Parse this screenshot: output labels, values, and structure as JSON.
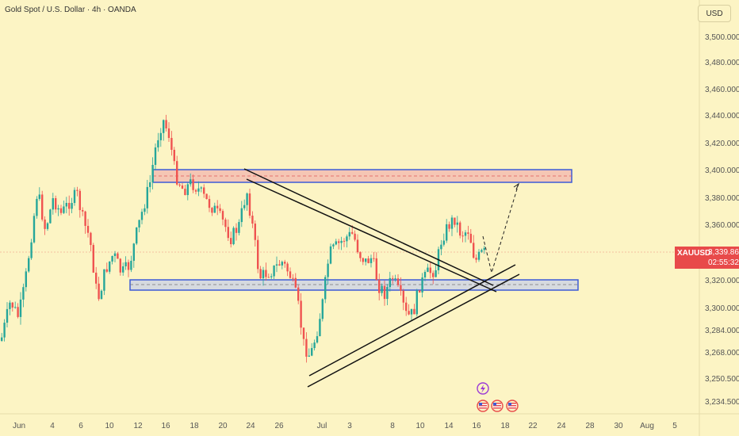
{
  "header": {
    "title": "Gold Spot / U.S. Dollar · 4h · OANDA"
  },
  "price_axis": {
    "currency": "USD",
    "ticks": [
      "3,500.000",
      "3,480.000",
      "3,460.000",
      "3,440.000",
      "3,420.000",
      "3,400.000",
      "3,380.000",
      "3,360.000",
      "3,320.000",
      "3,300.000",
      "3,284.000",
      "3,268.000",
      "3,250.500",
      "3,234.500"
    ]
  },
  "time_axis": {
    "ticks": [
      "Jun",
      "4",
      "6",
      "10",
      "12",
      "16",
      "18",
      "20",
      "24",
      "26",
      "Jul",
      "3",
      "8",
      "10",
      "14",
      "16",
      "18",
      "22",
      "24",
      "28",
      "30",
      "Aug",
      "5"
    ]
  },
  "last_price": {
    "symbol": "XAUUSD",
    "value": "3,339.865",
    "countdown": "02:55:32"
  },
  "events": {
    "flash_icon": "lightning-icon",
    "flag_icons": [
      "us-flag-icon",
      "us-flag-icon",
      "us-flag-icon"
    ]
  },
  "colors": {
    "background": "#fcf4c4",
    "bull": "#26a69a",
    "bear": "#ef5350",
    "zone_fill_top": "#f5c6b4",
    "zone_fill_bottom": "#d6dadf",
    "zone_border": "#3d5bd6",
    "price_tag": "#e84a4a",
    "event_icon": "#9b3ad6"
  }
}
